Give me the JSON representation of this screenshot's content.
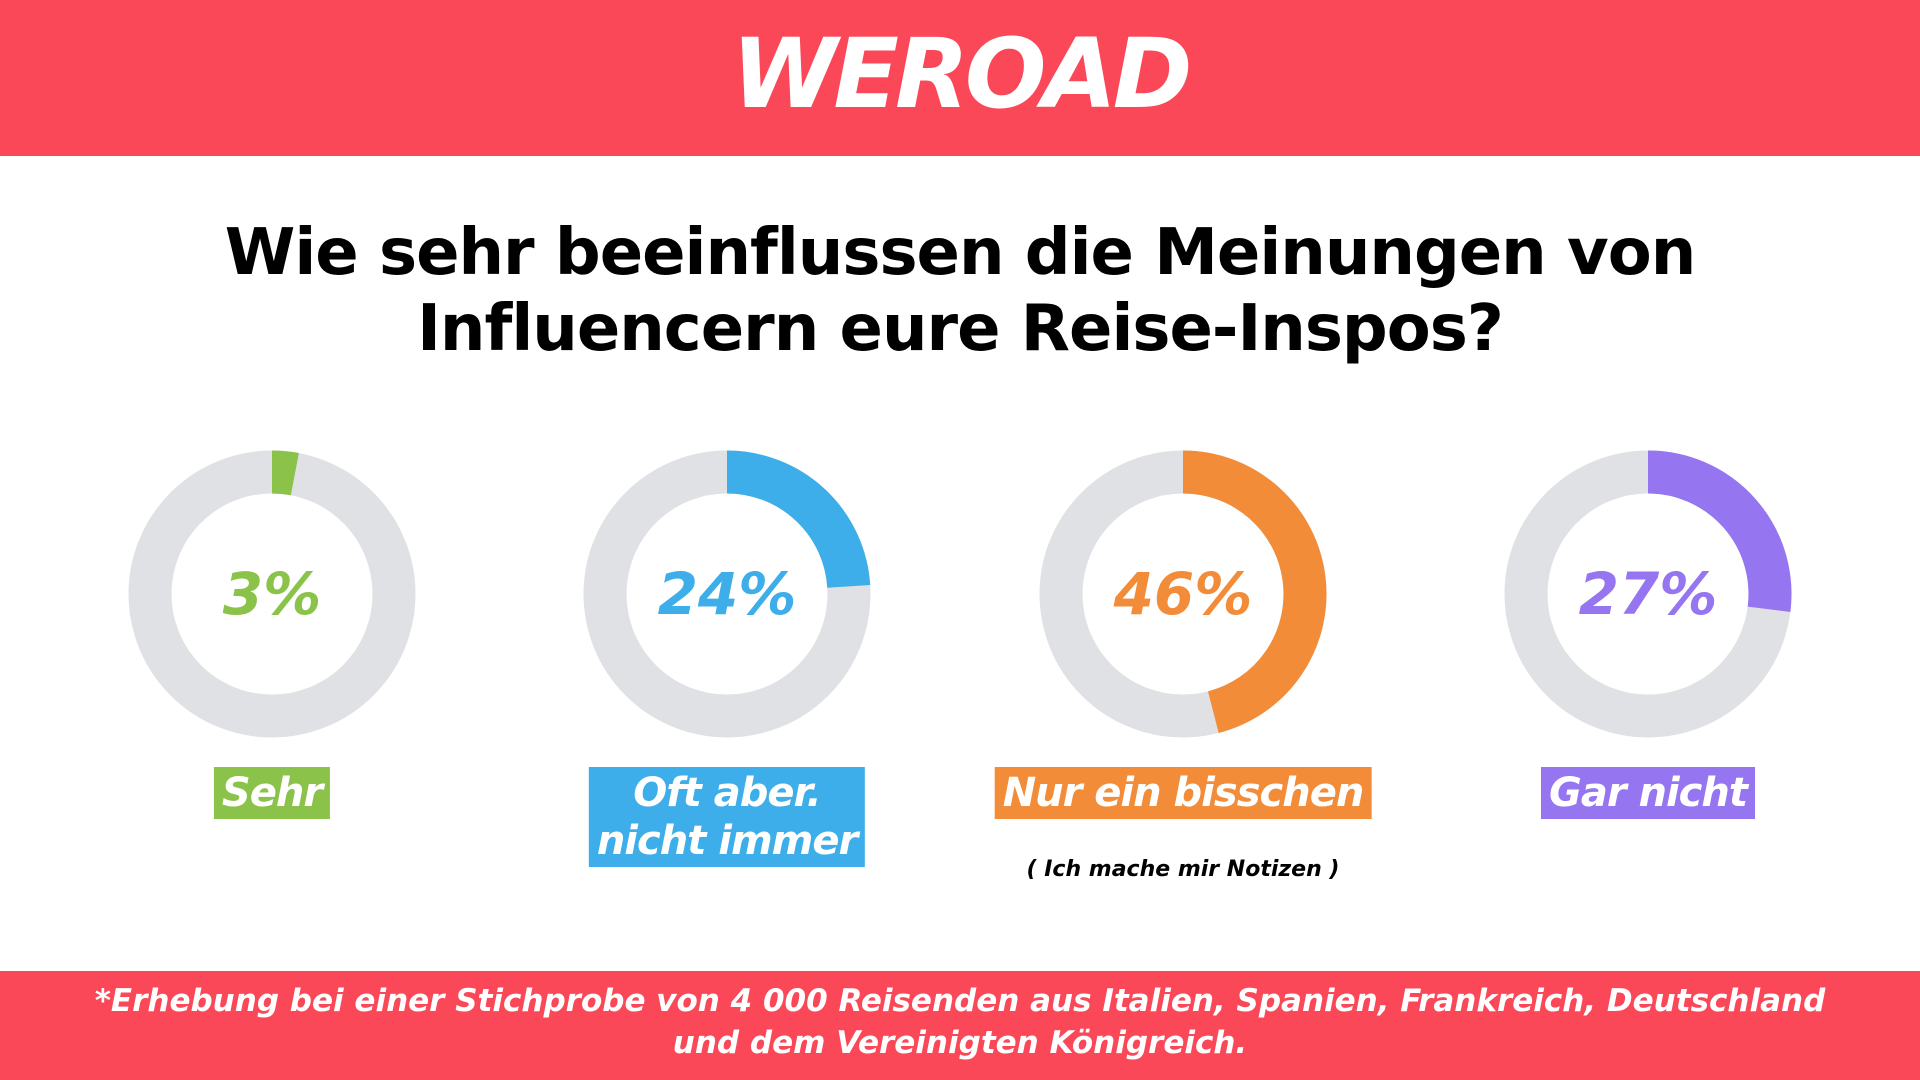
{
  "header": {
    "logo": "WEROAD"
  },
  "title": "Wie sehr beeinflussen die Meinungen von Influencern eure Reise-Inspos?",
  "chart_data": [
    {
      "type": "donut",
      "label": "Sehr",
      "values": [
        3
      ],
      "value_labels": [
        "3%"
      ],
      "color": "#8bc34a"
    },
    {
      "type": "donut",
      "label": "Oft aber.\nnicht immer",
      "values": [
        24
      ],
      "value_labels": [
        "24%"
      ],
      "color": "#3daee9"
    },
    {
      "type": "donut",
      "label": "Nur ein bisschen",
      "values": [
        46
      ],
      "value_labels": [
        "46%"
      ],
      "color": "#f28c38",
      "annotation": "( Ich mache mir Notizen )"
    },
    {
      "type": "donut",
      "label": "Gar nicht",
      "values": [
        27
      ],
      "value_labels": [
        "27%"
      ],
      "color": "#9575f0"
    }
  ],
  "footnote": "*Erhebung bei einer Stichprobe von 4 000 Reisenden aus Italien, Spanien, Frankreich, Deutschland und dem Vereinigten Königreich."
}
